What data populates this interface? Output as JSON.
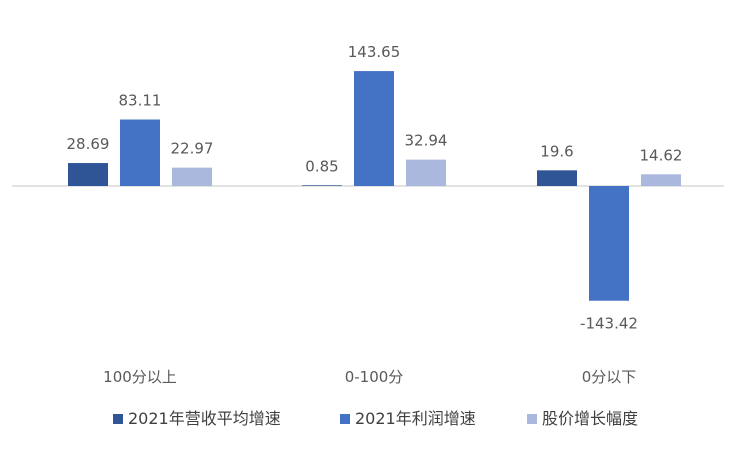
{
  "chart_data": {
    "type": "bar",
    "categories": [
      "100分以上",
      "0-100分",
      "0分以下"
    ],
    "series": [
      {
        "name": "2021年营收平均增速",
        "color": "#2f5597",
        "values": [
          28.69,
          0.85,
          19.6
        ]
      },
      {
        "name": "2021年利润增速",
        "color": "#4472c4",
        "values": [
          83.11,
          143.65,
          -143.42
        ]
      },
      {
        "name": "股价增长幅度",
        "color": "#a9b8dc",
        "values": [
          22.97,
          32.94,
          14.62
        ]
      }
    ],
    "value_labels": [
      [
        "28.69",
        "0.85",
        "19.6"
      ],
      [
        "83.11",
        "143.65",
        "-143.42"
      ],
      [
        "22.97",
        "32.94",
        "14.62"
      ]
    ],
    "title": "",
    "xlabel": "",
    "ylabel": "",
    "ylim": [
      -145,
      145
    ],
    "grid": false,
    "legend_position": "bottom"
  }
}
